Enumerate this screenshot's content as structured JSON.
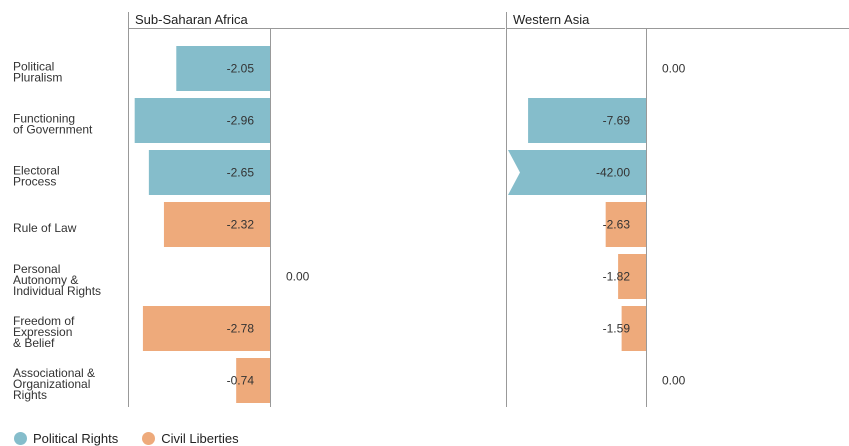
{
  "chart_data": {
    "type": "bar",
    "orientation": "horizontal",
    "categories": [
      [
        "Political",
        "Pluralism"
      ],
      [
        "Functioning",
        "of Government"
      ],
      [
        "Electoral",
        "Process"
      ],
      [
        "Rule of Law"
      ],
      [
        "Personal",
        "Autonomy &",
        "Individual Rights"
      ],
      [
        "Freedom of",
        "Expression",
        "& Belief"
      ],
      [
        "Associational &",
        "Organizational",
        "Rights"
      ]
    ],
    "category_groups": [
      "Political Rights",
      "Political Rights",
      "Political Rights",
      "Civil Liberties",
      "Civil Liberties",
      "Civil Liberties",
      "Civil Liberties"
    ],
    "panels": [
      {
        "title": "Sub-Saharan Africa",
        "values": [
          -2.05,
          -2.96,
          -2.65,
          -2.32,
          0.0,
          -2.78,
          -0.74
        ],
        "labels": [
          "-2.05",
          "-2.96",
          "-2.65",
          "-2.32",
          "0.00",
          "-2.78",
          "-0.74"
        ],
        "truncated": [
          false,
          false,
          false,
          false,
          false,
          false,
          false
        ]
      },
      {
        "title": "Western Asia",
        "values": [
          0.0,
          -7.69,
          -42.0,
          -2.63,
          -1.82,
          -1.59,
          0.0
        ],
        "labels": [
          "0.00",
          "-7.69",
          "-42.00",
          "-2.63",
          "-1.82",
          "-1.59",
          "0.00"
        ],
        "truncated": [
          false,
          false,
          true,
          false,
          false,
          false,
          false
        ]
      }
    ],
    "legend": [
      {
        "name": "Political Rights",
        "color": "#85bdcb"
      },
      {
        "name": "Civil Liberties",
        "color": "#eeaa7b"
      }
    ],
    "legend_position": "bottom-left",
    "grid": false
  }
}
